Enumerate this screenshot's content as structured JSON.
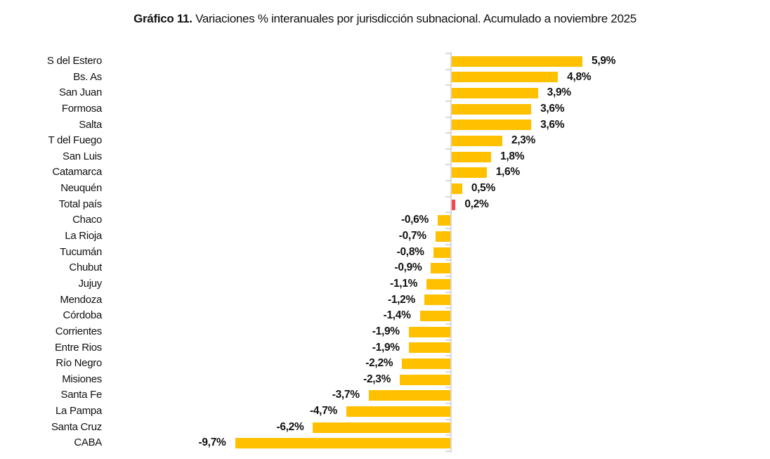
{
  "title": {
    "label_bold": "Gráfico 11.",
    "label_rest": " Variaciones % interanuales por jurisdicción subnacional. Acumulado a noviembre 2025"
  },
  "chart_data": {
    "type": "bar",
    "orientation": "horizontal",
    "title": "Gráfico 11. Variaciones % interanuales por jurisdicción subnacional. Acumulado a noviembre 2025",
    "categories": [
      "S del Estero",
      "Bs. As",
      "San Juan",
      "Formosa",
      "Salta",
      "T del Fuego",
      "San Luis",
      "Catamarca",
      "Neuquén",
      "Total país",
      "Chaco",
      "La Rioja",
      "Tucumán",
      "Chubut",
      "Jujuy",
      "Mendoza",
      "Córdoba",
      "Corrientes",
      "Entre Rios",
      "Río Negro",
      "Misiones",
      "Santa Fe",
      "La Pampa",
      "Santa Cruz",
      "CABA"
    ],
    "values": [
      5.9,
      4.8,
      3.9,
      3.6,
      3.6,
      2.3,
      1.8,
      1.6,
      0.5,
      0.2,
      -0.6,
      -0.7,
      -0.8,
      -0.9,
      -1.1,
      -1.2,
      -1.4,
      -1.9,
      -1.9,
      -2.2,
      -2.3,
      -3.7,
      -4.7,
      -6.2,
      -9.7
    ],
    "value_labels": [
      "5,9%",
      "4,8%",
      "3,9%",
      "3,6%",
      "3,6%",
      "2,3%",
      "1,8%",
      "1,6%",
      "0,5%",
      "0,2%",
      "-0,6%",
      "-0,7%",
      "-0,8%",
      "-0,9%",
      "-1,1%",
      "-1,2%",
      "-1,4%",
      "-1,9%",
      "-1,9%",
      "-2,2%",
      "-2,3%",
      "-3,7%",
      "-4,7%",
      "-6,2%",
      "-9,7%"
    ],
    "highlight_category": "Total país",
    "colors": {
      "bar": "#FFC000",
      "highlight_bar": "#F7484C",
      "axis": "#D8D8D8",
      "text": "#111111"
    },
    "xlim": [
      -9.7,
      5.9
    ],
    "xlabel": "",
    "ylabel": "",
    "grid": false,
    "legend": false
  }
}
